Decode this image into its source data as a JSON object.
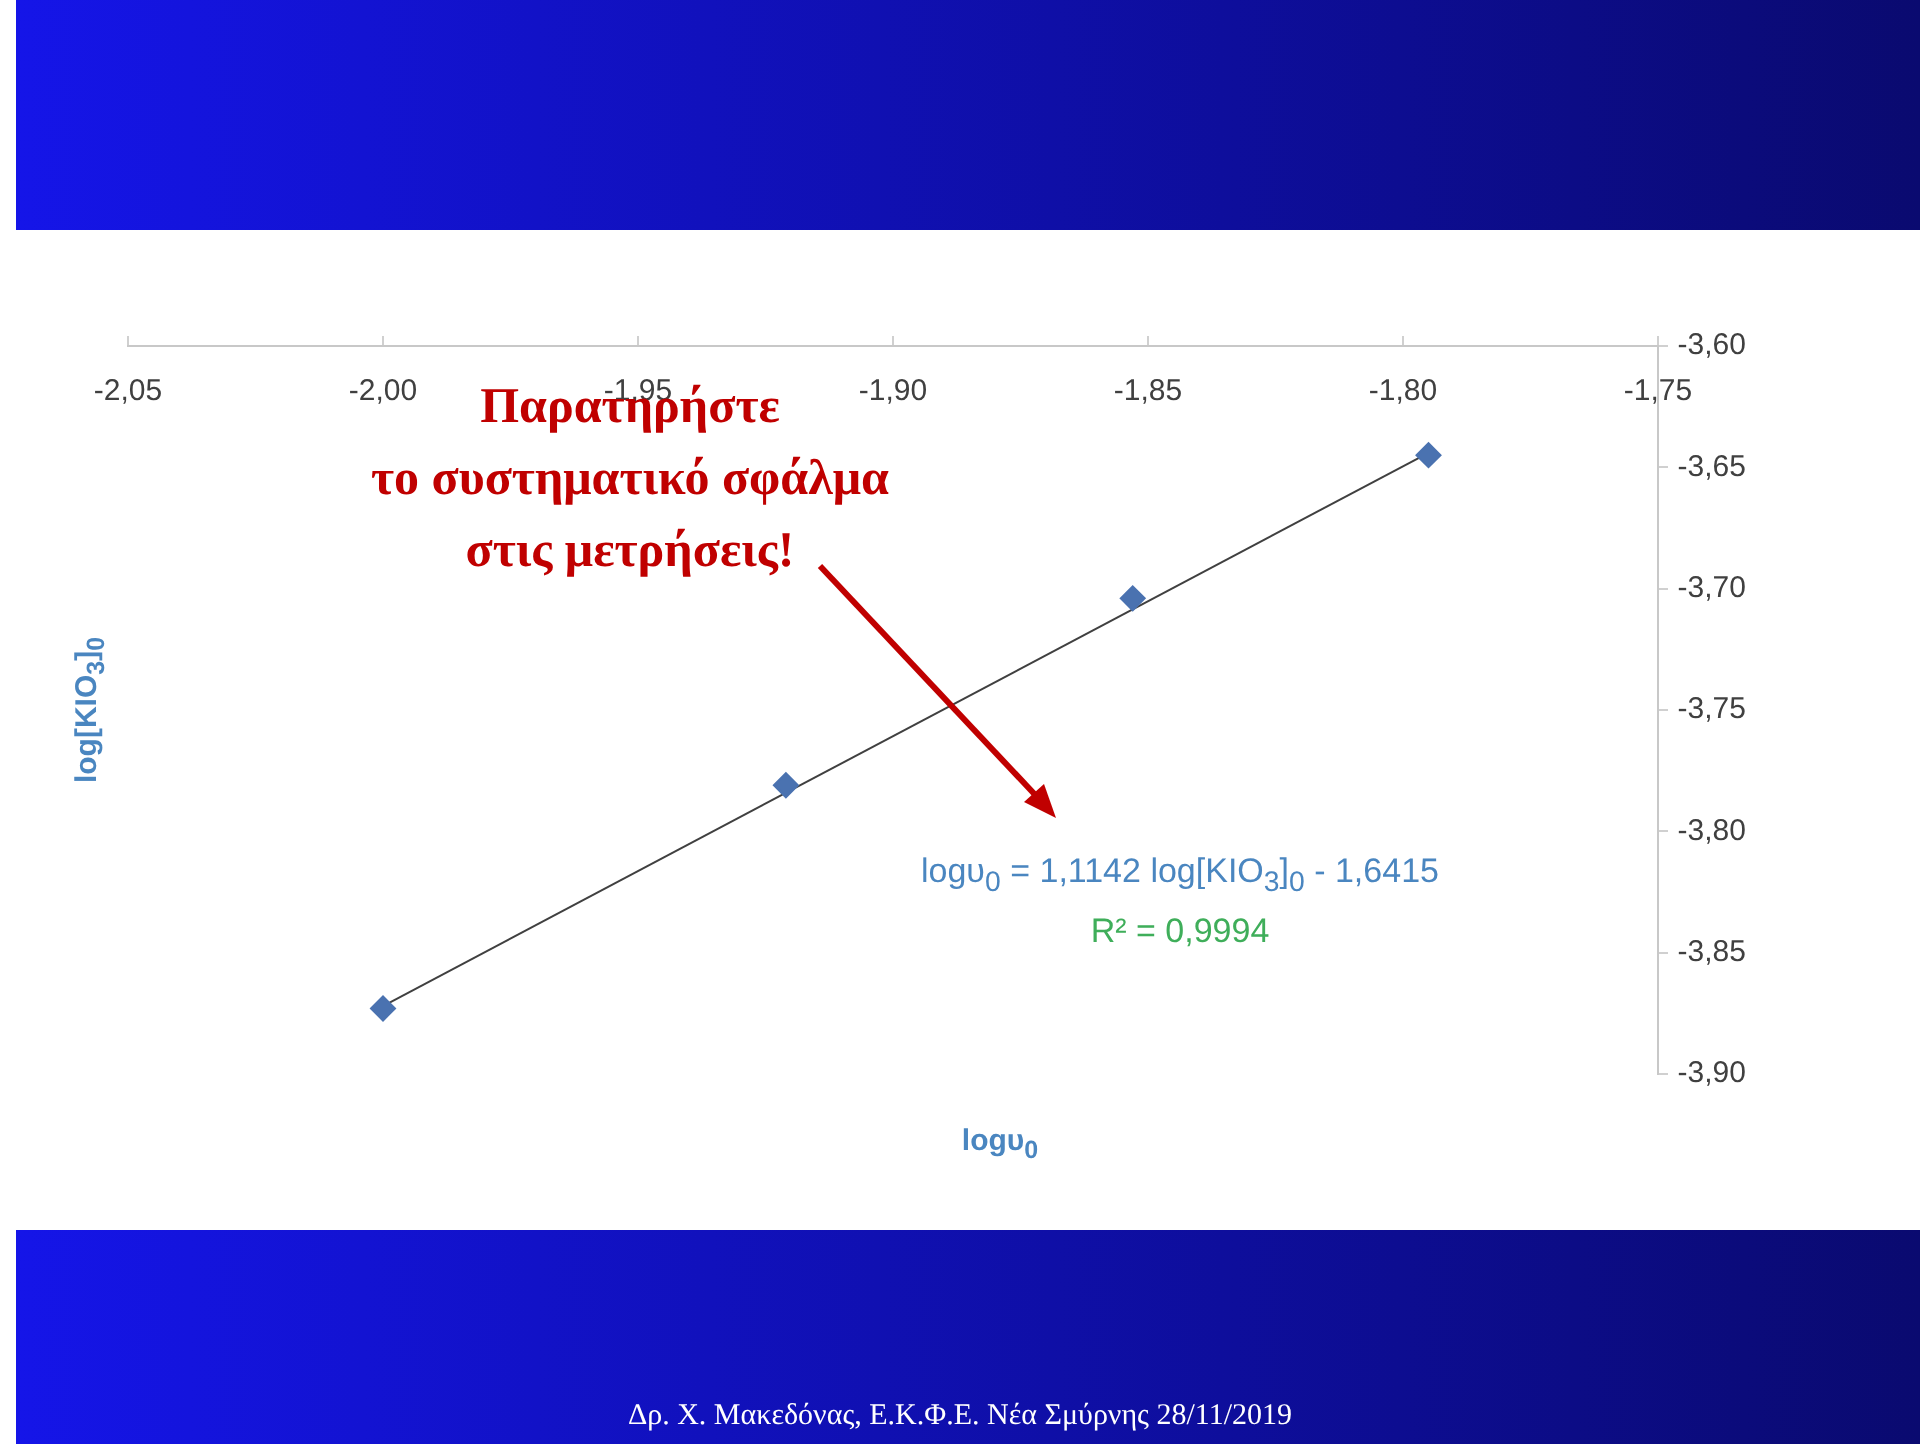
{
  "chart_data": {
    "type": "scatter",
    "xlabel": "logυ$_{0}$",
    "ylabel": "log[KIO$_{3}$]$_{0}$",
    "annotations": [
      "Παρατηρήστε\nτο συστηματικό σφάλμα\nστις μετρήσεις!",
      "logυ$_{0}$ = 1,1142 log[KIO$_{3}$]$_{0}$ - 1,6415",
      "R² = 0,9994",
      "Δρ. Χ. Μακεδόνας, Ε.Κ.Φ.Ε. Νέα Σμύρνης 28/11/2019"
    ],
    "xlim": [
      -2.05,
      -1.75
    ],
    "xticks": [
      {
        "value": -2.05,
        "label": "-2,05"
      },
      {
        "value": -2.0,
        "label": "-2,00"
      },
      {
        "value": -1.95,
        "label": "-1,95"
      },
      {
        "value": -1.9,
        "label": "-1,90"
      },
      {
        "value": -1.85,
        "label": "-1,85"
      },
      {
        "value": -1.8,
        "label": "-1,80"
      },
      {
        "value": -1.75,
        "label": "-1,75"
      }
    ],
    "ylim": [
      -3.9,
      -3.6
    ],
    "yticks": [
      {
        "value": -3.9,
        "label": "-3,90"
      },
      {
        "value": -3.85,
        "label": "-3,85"
      },
      {
        "value": -3.8,
        "label": "-3,80"
      },
      {
        "value": -3.75,
        "label": "-3,75"
      },
      {
        "value": -3.7,
        "label": "-3,70"
      },
      {
        "value": -3.65,
        "label": "-3,65"
      },
      {
        "value": -3.6,
        "label": "-3,60"
      }
    ],
    "grid": false,
    "legend": false,
    "marker": "diamond",
    "series": [
      {
        "type": "scatter",
        "color": "#4a72b0",
        "x": [
          -2.0,
          -1.921,
          -1.853,
          -1.795
        ],
        "values": [
          -3.873,
          -3.781,
          -3.704,
          -3.645
        ]
      },
      {
        "type": "line",
        "color": "#404040",
        "marker": "none",
        "x": [
          -2.0,
          -1.795
        ],
        "values": [
          -3.872,
          -3.644
        ]
      }
    ]
  }
}
